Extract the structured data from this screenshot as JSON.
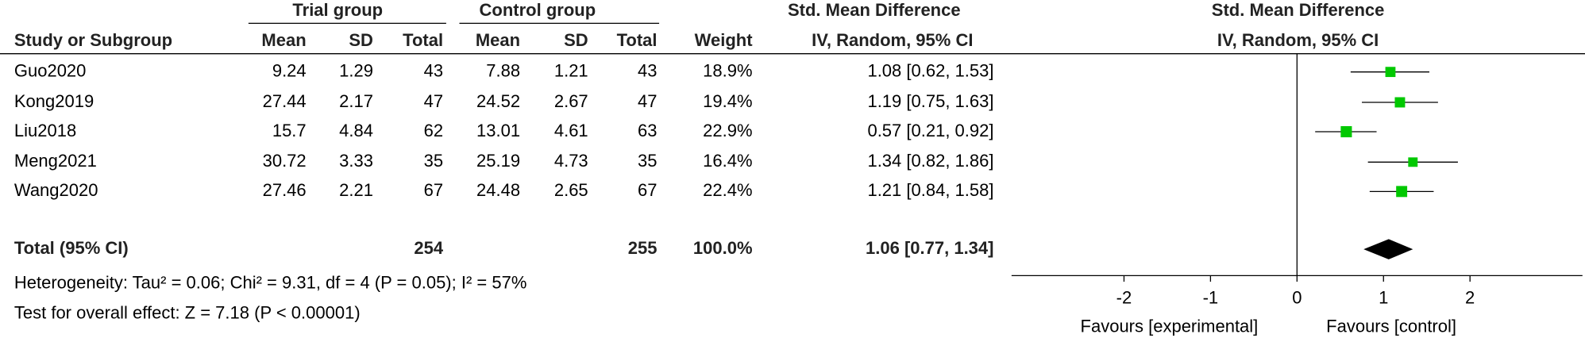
{
  "chart_data": {
    "type": "forest",
    "group_labels": [
      "Trial group",
      "Control group"
    ],
    "table_effect_title": "Std. Mean Difference",
    "table_effect_subtitle": "IV, Random, 95% CI",
    "plot_title": "Std. Mean Difference",
    "plot_subtitle": "IV, Random, 95% CI",
    "columns": [
      "Study or Subgroup",
      "Mean",
      "SD",
      "Total",
      "Mean",
      "SD",
      "Total",
      "Weight"
    ],
    "categories": [
      "Guo2020",
      "Kong2019",
      "Liu2018",
      "Meng2021",
      "Wang2020"
    ],
    "rows": [
      [
        9.24,
        1.29,
        43,
        7.88,
        1.21,
        43
      ],
      [
        27.44,
        2.17,
        47,
        24.52,
        2.67,
        47
      ],
      [
        15.7,
        4.84,
        62,
        13.01,
        4.61,
        63
      ],
      [
        30.72,
        3.33,
        35,
        25.19,
        4.73,
        35
      ],
      [
        27.46,
        2.21,
        67,
        24.48,
        2.65,
        67
      ]
    ],
    "weight": [
      18.9,
      19.4,
      22.9,
      16.4,
      22.4
    ],
    "weight_labels": [
      "18.9%",
      "19.4%",
      "22.9%",
      "16.4%",
      "22.4%"
    ],
    "smd": [
      1.08,
      1.19,
      0.57,
      1.34,
      1.21
    ],
    "ci_lower": [
      0.62,
      0.75,
      0.21,
      0.82,
      0.84
    ],
    "ci_upper": [
      1.53,
      1.63,
      0.92,
      1.86,
      1.58
    ],
    "ci_labels": [
      "1.08 [0.62, 1.53]",
      "1.19 [0.75, 1.63]",
      "0.57 [0.21, 0.92]",
      "1.34 [0.82, 1.86]",
      "1.21 [0.84, 1.58]"
    ],
    "total_label": "Total (95% CI)",
    "total_trial": 254,
    "total_control": 255,
    "total_weight": 100,
    "total_weight_label": "100.0%",
    "total_smd": 1.06,
    "total_lower": 0.77,
    "total_upper": 1.34,
    "total_ci_label": "1.06 [0.77, 1.34]",
    "heterogeneity": "Heterogeneity: Tau² = 0.06; Chi² = 9.31, df = 4 (P = 0.05); I² = 57%",
    "overall_effect": "Test for overall effect: Z = 7.18 (P < 0.00001)",
    "xlim": [
      -3.3,
      3.3
    ],
    "xticks": [
      -2,
      -1,
      0,
      1,
      2
    ],
    "favours_left": "Favours [experimental]",
    "favours_right": "Favours [control]",
    "square_color": "#00c800",
    "diamond_color": "#000000"
  }
}
